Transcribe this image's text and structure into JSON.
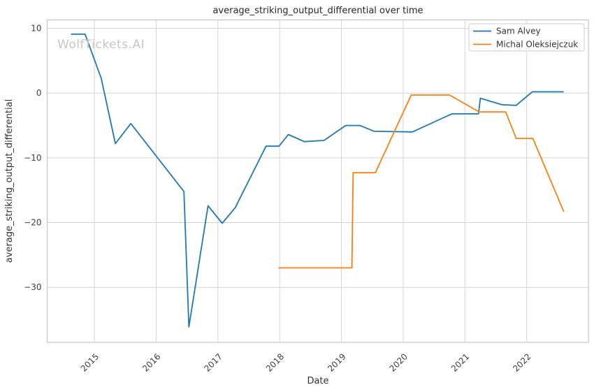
{
  "chart_data": {
    "type": "line",
    "title": "average_striking_output_differential over time",
    "xlabel": "Date",
    "ylabel": "average_striking_output_differential",
    "watermark": "WolfTickets.AI",
    "xlim": [
      2014.235,
      2023.0
    ],
    "ylim": [
      -38.5,
      11.3
    ],
    "grid": true,
    "legend": {
      "position": "upper right",
      "entries": [
        "Sam Alvey",
        "Michal Oleksiejczuk"
      ]
    },
    "x_ticks": [
      {
        "value": 2015,
        "label": "2015"
      },
      {
        "value": 2016,
        "label": "2016"
      },
      {
        "value": 2017,
        "label": "2017"
      },
      {
        "value": 2018,
        "label": "2018"
      },
      {
        "value": 2019,
        "label": "2019"
      },
      {
        "value": 2020,
        "label": "2020"
      },
      {
        "value": 2021,
        "label": "2021"
      },
      {
        "value": 2022,
        "label": "2022"
      }
    ],
    "y_ticks": [
      {
        "value": 10,
        "label": "10"
      },
      {
        "value": 0,
        "label": "0"
      },
      {
        "value": -10,
        "label": "−10"
      },
      {
        "value": -20,
        "label": "−20"
      },
      {
        "value": -30,
        "label": "−30"
      }
    ],
    "series": [
      {
        "name": "Sam Alvey",
        "color": "#1f77b4",
        "points": [
          [
            2014.62,
            9.1
          ],
          [
            2014.85,
            9.1
          ],
          [
            2015.11,
            2.3
          ],
          [
            2015.34,
            -7.8
          ],
          [
            2015.59,
            -4.7
          ],
          [
            2016.45,
            -15.2
          ],
          [
            2016.53,
            -36.1
          ],
          [
            2016.84,
            -17.4
          ],
          [
            2017.07,
            -20.1
          ],
          [
            2017.28,
            -17.7
          ],
          [
            2017.78,
            -8.2
          ],
          [
            2017.99,
            -8.2
          ],
          [
            2018.14,
            -6.4
          ],
          [
            2018.4,
            -7.5
          ],
          [
            2018.72,
            -7.3
          ],
          [
            2019.07,
            -5.0
          ],
          [
            2019.3,
            -5.0
          ],
          [
            2019.53,
            -5.9
          ],
          [
            2020.15,
            -6.0
          ],
          [
            2020.79,
            -3.2
          ],
          [
            2021.22,
            -3.2
          ],
          [
            2021.25,
            -0.8
          ],
          [
            2021.6,
            -1.8
          ],
          [
            2021.83,
            -1.9
          ],
          [
            2022.09,
            0.2
          ],
          [
            2022.6,
            0.2
          ]
        ]
      },
      {
        "name": "Michal Oleksiejczuk",
        "color": "#ff7f0e",
        "points": [
          [
            2017.98,
            -27.0
          ],
          [
            2019.17,
            -27.0
          ],
          [
            2019.19,
            -12.3
          ],
          [
            2019.55,
            -12.3
          ],
          [
            2020.13,
            -0.3
          ],
          [
            2020.75,
            -0.3
          ],
          [
            2021.23,
            -2.9
          ],
          [
            2021.66,
            -2.9
          ],
          [
            2021.83,
            -7.0
          ],
          [
            2022.1,
            -7.0
          ],
          [
            2022.6,
            -18.3
          ]
        ]
      }
    ],
    "style": {
      "grid_color": "#d4d4d4",
      "box_color": "#c4c4c4",
      "line_width": 1.8
    }
  }
}
